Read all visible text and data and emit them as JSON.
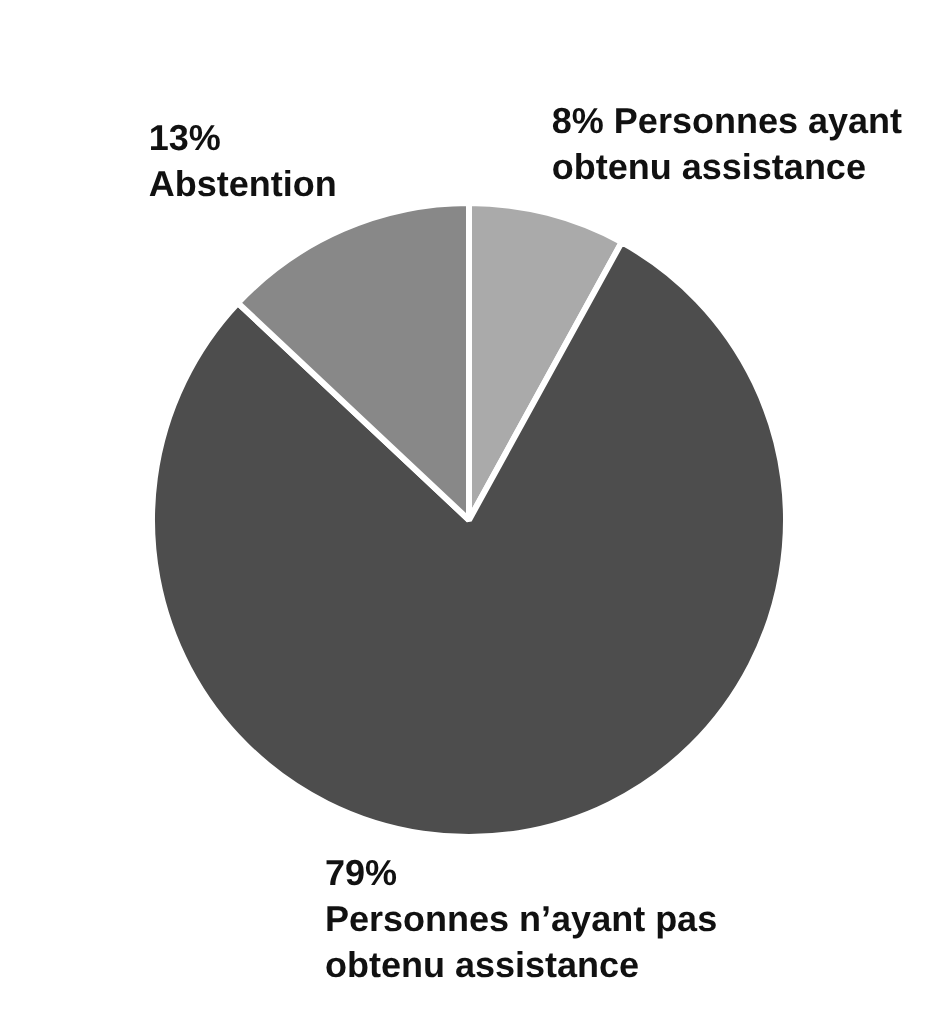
{
  "chart_data": {
    "type": "pie",
    "categories": [
      "Personnes ayant obtenu assistance",
      "Personnes n’ayant pas obtenu assistance",
      "Abstention"
    ],
    "values": [
      8,
      79,
      13
    ],
    "colors": [
      "#aaaaaa",
      "#4d4d4d",
      "#888888"
    ],
    "value_labels": [
      "8%",
      "79%",
      "13%"
    ]
  }
}
